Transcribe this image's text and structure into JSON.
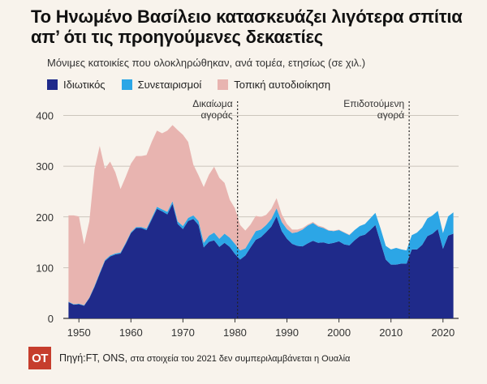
{
  "header": {
    "title_line1": "Το Ηνωμένο Βασίλειο κατασκευάζει λιγότερα σπίτια",
    "title_line2": "απ’ ότι τις προηγούμενες δεκαετίες",
    "subtitle": "Μόνιμες κατοικίες που ολοκληρώθηκαν, ανά τομέα, ετησίως (σε χιλ.)"
  },
  "legend": [
    {
      "label": "Ιδιωτικός",
      "color": "#1f2a8a"
    },
    {
      "label": "Συνεταιρισμοί",
      "color": "#2ca6e6"
    },
    {
      "label": "Τοπική αυτοδιοίκηση",
      "color": "#e8b4b0"
    }
  ],
  "footer": {
    "logo": "ΟΤ",
    "source_main": "Πηγή:FT, ONS,",
    "source_note": "στα στοιχεία  του 2021 δεν συμπεριλαμβάνεται η Ουαλία"
  },
  "chart_data": {
    "type": "area",
    "stacked": true,
    "xlabel": "",
    "ylabel": "",
    "xlim": [
      1947,
      2023
    ],
    "ylim": [
      0,
      420
    ],
    "x_ticks": [
      1950,
      1960,
      1970,
      1980,
      1990,
      2000,
      2010,
      2020
    ],
    "y_ticks": [
      0,
      100,
      200,
      300,
      400
    ],
    "grid": "horizontal",
    "legend_position": "top-left",
    "annotations": [
      {
        "x": 1980.5,
        "line1": "Δικαίωμα",
        "line2": "αγοράς"
      },
      {
        "x": 2013.5,
        "line1": "Επιδοτούμενη",
        "line2": "αγορά"
      }
    ],
    "x": [
      1948,
      1949,
      1950,
      1951,
      1952,
      1953,
      1954,
      1955,
      1956,
      1957,
      1958,
      1959,
      1960,
      1961,
      1962,
      1963,
      1964,
      1965,
      1966,
      1967,
      1968,
      1969,
      1970,
      1971,
      1972,
      1973,
      1974,
      1975,
      1976,
      1977,
      1978,
      1979,
      1980,
      1981,
      1982,
      1983,
      1984,
      1985,
      1986,
      1987,
      1988,
      1989,
      1990,
      1991,
      1992,
      1993,
      1994,
      1995,
      1996,
      1997,
      1998,
      1999,
      2000,
      2001,
      2002,
      2003,
      2004,
      2005,
      2006,
      2007,
      2008,
      2009,
      2010,
      2011,
      2012,
      2013,
      2014,
      2015,
      2016,
      2017,
      2018,
      2019,
      2020,
      2021,
      2022
    ],
    "series": [
      {
        "name": "Ιδιωτικός",
        "values": [
          32,
          27,
          28,
          25,
          40,
          62,
          88,
          113,
          122,
          126,
          128,
          147,
          168,
          178,
          178,
          174,
          195,
          216,
          211,
          205,
          226,
          186,
          176,
          192,
          196,
          184,
          140,
          151,
          154,
          141,
          149,
          141,
          127,
          116,
          124,
          140,
          155,
          160,
          170,
          181,
          201,
          172,
          157,
          147,
          143,
          142,
          148,
          153,
          149,
          150,
          147,
          149,
          152,
          146,
          144,
          154,
          162,
          165,
          174,
          184,
          150,
          116,
          106,
          106,
          108,
          108,
          136,
          136,
          145,
          162,
          167,
          176,
          137,
          163,
          167
        ]
      },
      {
        "name": "Συνεταιρισμοί",
        "values": [
          1,
          1,
          1,
          1,
          1,
          2,
          2,
          2,
          2,
          2,
          2,
          2,
          2,
          2,
          2,
          3,
          3,
          4,
          4,
          5,
          5,
          5,
          6,
          6,
          7,
          8,
          9,
          12,
          15,
          16,
          18,
          18,
          20,
          18,
          14,
          15,
          17,
          15,
          14,
          15,
          16,
          18,
          19,
          21,
          27,
          33,
          35,
          35,
          32,
          28,
          26,
          23,
          22,
          23,
          20,
          20,
          20,
          21,
          23,
          24,
          27,
          27,
          30,
          33,
          28,
          26,
          28,
          33,
          34,
          35,
          36,
          36,
          31,
          38,
          42
        ]
      },
      {
        "name": "Τοπική αυτοδιοίκηση",
        "values": [
          170,
          175,
          172,
          120,
          150,
          230,
          250,
          180,
          185,
          160,
          125,
          130,
          135,
          140,
          140,
          145,
          150,
          150,
          150,
          160,
          150,
          180,
          180,
          150,
          100,
          90,
          110,
          120,
          130,
          120,
          100,
          75,
          70,
          50,
          35,
          30,
          30,
          25,
          20,
          20,
          20,
          15,
          10,
          7,
          5,
          3,
          2,
          2,
          2,
          2,
          1,
          1,
          1,
          1,
          1,
          0,
          0,
          0,
          0,
          0,
          0,
          0,
          0,
          0,
          0,
          0,
          0,
          0,
          0,
          0,
          0,
          0,
          0,
          0,
          0
        ]
      }
    ]
  }
}
